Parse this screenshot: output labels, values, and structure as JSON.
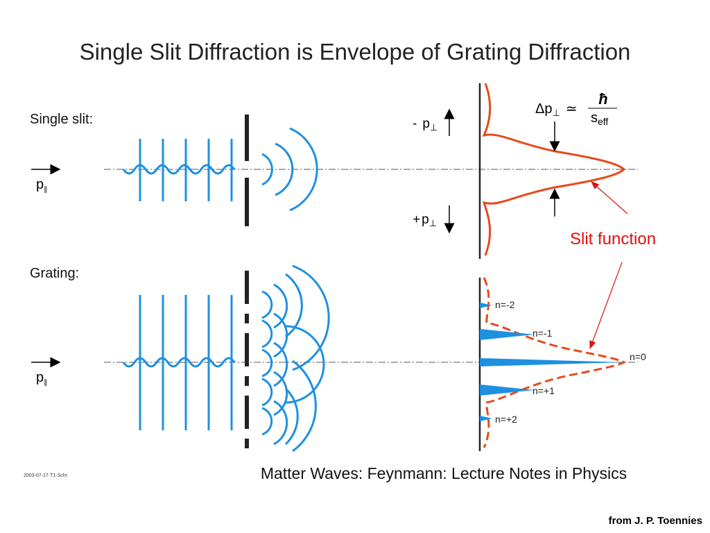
{
  "title": "Single Slit Diffraction is Envelope of Grating Diffraction",
  "single_slit": {
    "label": "Single slit:",
    "momentum": {
      "symbol": "p",
      "subscript": "∥"
    }
  },
  "grating": {
    "label": "Grating:",
    "momentum": {
      "symbol": "p",
      "subscript": "∥"
    }
  },
  "transverse": {
    "minus": {
      "sign": "-",
      "symbol": "p",
      "subscript": "⊥"
    },
    "plus": {
      "sign": "+",
      "symbol": "p",
      "subscript": "⊥"
    }
  },
  "formula": {
    "delta": "Δ",
    "symbol": "p",
    "subscript": "⊥",
    "relation": "≃",
    "numerator": "ħ",
    "denominator": "s",
    "denominator_subscript": "eff"
  },
  "slit_function": "Slit function",
  "orders": [
    "n=-2",
    "n=-1",
    "n=0",
    "n=+1",
    "n=+2"
  ],
  "footer": {
    "caption": "Matter Waves: Feynmann: Lecture Notes in Physics",
    "date_code": "2003-07-17·T1·Schr.",
    "credit": "from J. P. Toennies"
  }
}
